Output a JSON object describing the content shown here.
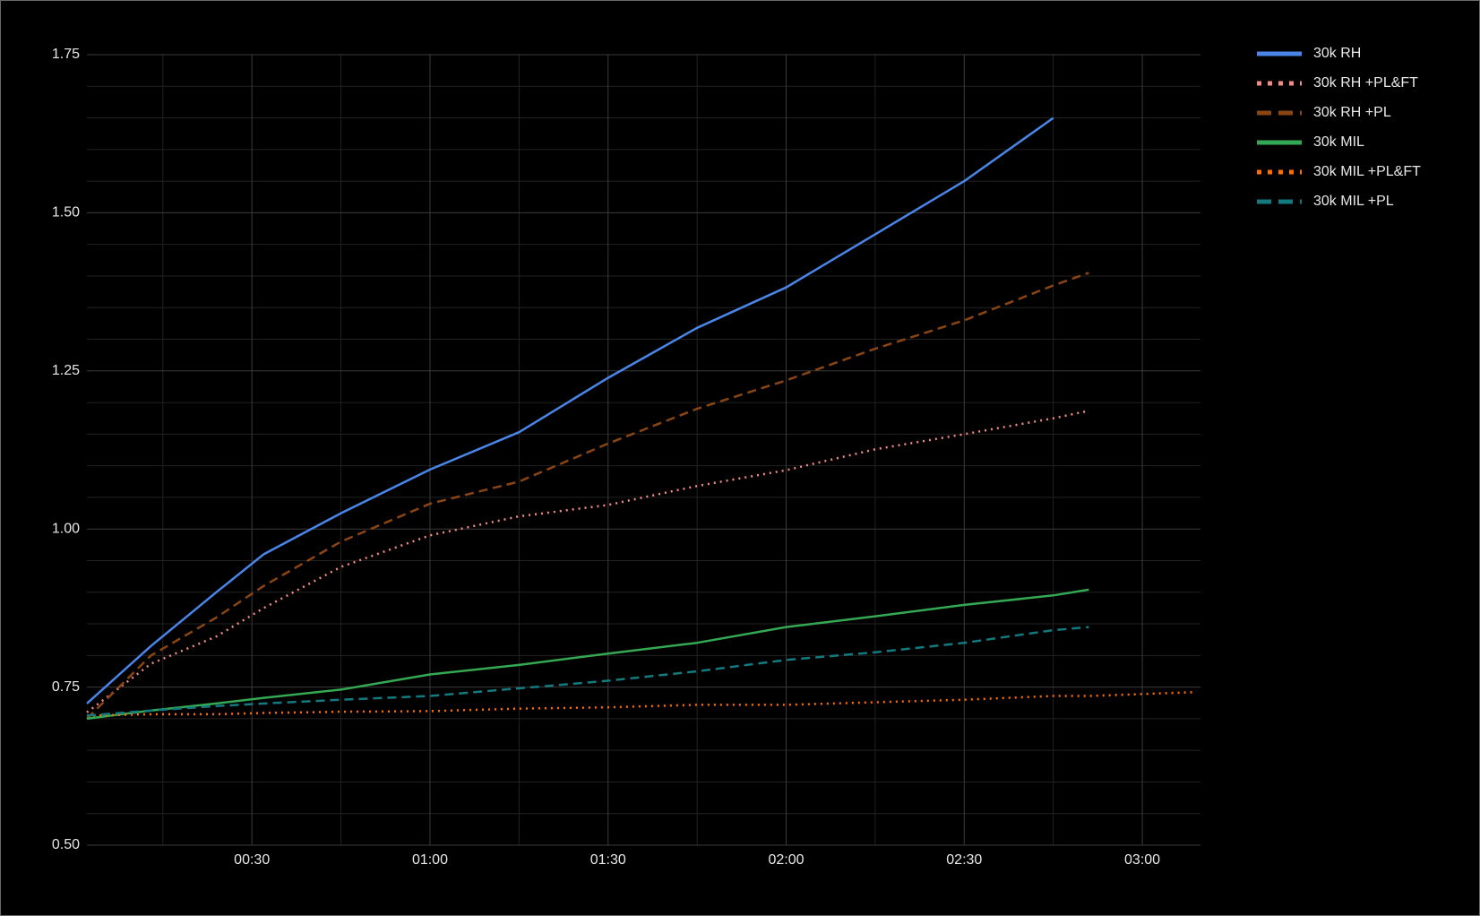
{
  "chart_data": {
    "type": "line",
    "x": [
      2.2,
      13,
      24,
      32,
      45,
      60,
      75,
      90,
      105,
      120,
      135,
      150,
      165,
      171,
      189
    ],
    "xlim": [
      2.2,
      189.8
    ],
    "xticks": [
      {
        "value": 30,
        "label": "00:30"
      },
      {
        "value": 60,
        "label": "01:00"
      },
      {
        "value": 90,
        "label": "01:30"
      },
      {
        "value": 120,
        "label": "02:00"
      },
      {
        "value": 150,
        "label": "02:30"
      },
      {
        "value": 180,
        "label": "03:00"
      }
    ],
    "ylim": [
      0.5,
      1.75
    ],
    "yticks": [
      {
        "value": 0.5,
        "label": "0.50"
      },
      0.75,
      {
        "value": 1,
        "label": "1.00"
      },
      1.25,
      {
        "value": 1.5,
        "label": "1.50"
      },
      1.75
    ],
    "grid": true,
    "minor_grid": true,
    "legend": "right",
    "series": [
      {
        "name": "30k RH",
        "color": "#4a86e8",
        "line_style": "solid",
        "values": [
          0.724,
          0.815,
          0.9,
          0.96,
          1.025,
          1.094,
          1.153,
          1.239,
          1.318,
          1.382,
          1.466,
          1.55,
          1.65,
          null,
          null
        ]
      },
      {
        "name": "30k RH +PL&FT",
        "color": "#f28b82",
        "line_style": "dotted",
        "values": [
          0.71,
          0.787,
          0.83,
          0.875,
          0.94,
          0.99,
          1.02,
          1.038,
          1.068,
          1.093,
          1.126,
          1.15,
          1.175,
          1.187,
          null
        ]
      },
      {
        "name": "30k RH +PL",
        "color": "#8b4513",
        "line_style": "dashed",
        "values": [
          0.7,
          0.8,
          0.86,
          0.91,
          0.98,
          1.04,
          1.075,
          1.135,
          1.19,
          1.235,
          1.285,
          1.33,
          1.385,
          1.405,
          null
        ]
      },
      {
        "name": "30k MIL",
        "color": "#34a853",
        "line_style": "solid",
        "values": [
          0.7,
          0.713,
          0.724,
          0.733,
          0.746,
          0.77,
          0.785,
          0.803,
          0.82,
          0.845,
          0.862,
          0.88,
          0.895,
          0.904,
          null
        ]
      },
      {
        "name": "30k MIL +PL&FT",
        "color": "#ff6d01",
        "line_style": "dotted",
        "values": [
          0.705,
          0.707,
          0.707,
          0.709,
          0.711,
          0.712,
          0.716,
          0.718,
          0.722,
          0.722,
          0.726,
          0.73,
          0.736,
          0.736,
          0.742
        ]
      },
      {
        "name": "30k MIL +PL",
        "color": "#137a7f",
        "line_style": "dashed",
        "values": [
          0.705,
          0.713,
          0.72,
          0.724,
          0.73,
          0.736,
          0.748,
          0.76,
          0.775,
          0.793,
          0.805,
          0.82,
          0.84,
          0.845,
          null
        ]
      }
    ]
  }
}
